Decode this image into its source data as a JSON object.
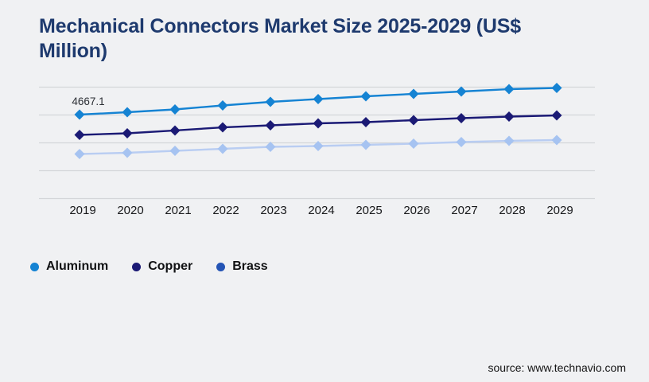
{
  "page": {
    "background_color": "#f0f1f3"
  },
  "header": {
    "title": "Mechanical Connectors Market Size 2025-2029 (US$ Million)",
    "title_color": "#1e3a6e"
  },
  "footer": {
    "source_text": "source: www.technavio.com"
  },
  "chart_data": {
    "type": "line",
    "title": "Mechanical Connectors Market Size 2025-2029 (US$ Million)",
    "xlabel": "",
    "ylabel": "",
    "categories": [
      "2019",
      "2020",
      "2021",
      "2022",
      "2023",
      "2024",
      "2025",
      "2026",
      "2027",
      "2028",
      "2029"
    ],
    "series": [
      {
        "name": "Aluminum",
        "marker": "diamond",
        "line_color": "#1583d3",
        "marker_color": "#1583d3",
        "legend_color": "#1583d3",
        "values": [
          4667.1,
          4800,
          4955,
          5176,
          5375,
          5530,
          5685,
          5818,
          5950,
          6083,
          6149
        ]
      },
      {
        "name": "Copper",
        "marker": "diamond",
        "line_color": "#1b1a75",
        "marker_color": "#1b1a75",
        "legend_color": "#1b1a75",
        "values": [
          3539,
          3628,
          3783,
          3959,
          4070,
          4181,
          4247,
          4358,
          4468,
          4557,
          4623
        ]
      },
      {
        "name": "Brass",
        "marker": "diamond",
        "line_color": "#b9cdf2",
        "marker_color": "#a6c3f1",
        "legend_color": "#2454b5",
        "values": [
          2477,
          2544,
          2654,
          2765,
          2876,
          2920,
          2986,
          3053,
          3141,
          3207,
          3252
        ]
      }
    ],
    "point_labels": [
      {
        "series_index": 0,
        "category_index": 0,
        "text": "4667.1"
      }
    ],
    "y_axis": {
      "visible": false,
      "min": 0,
      "max": 6650,
      "gridline_count": 5
    },
    "x_axis": {
      "labels_visible": true
    },
    "grid": true,
    "gridline_color": "#d4d6d9",
    "legend_position": "bottom-left"
  }
}
